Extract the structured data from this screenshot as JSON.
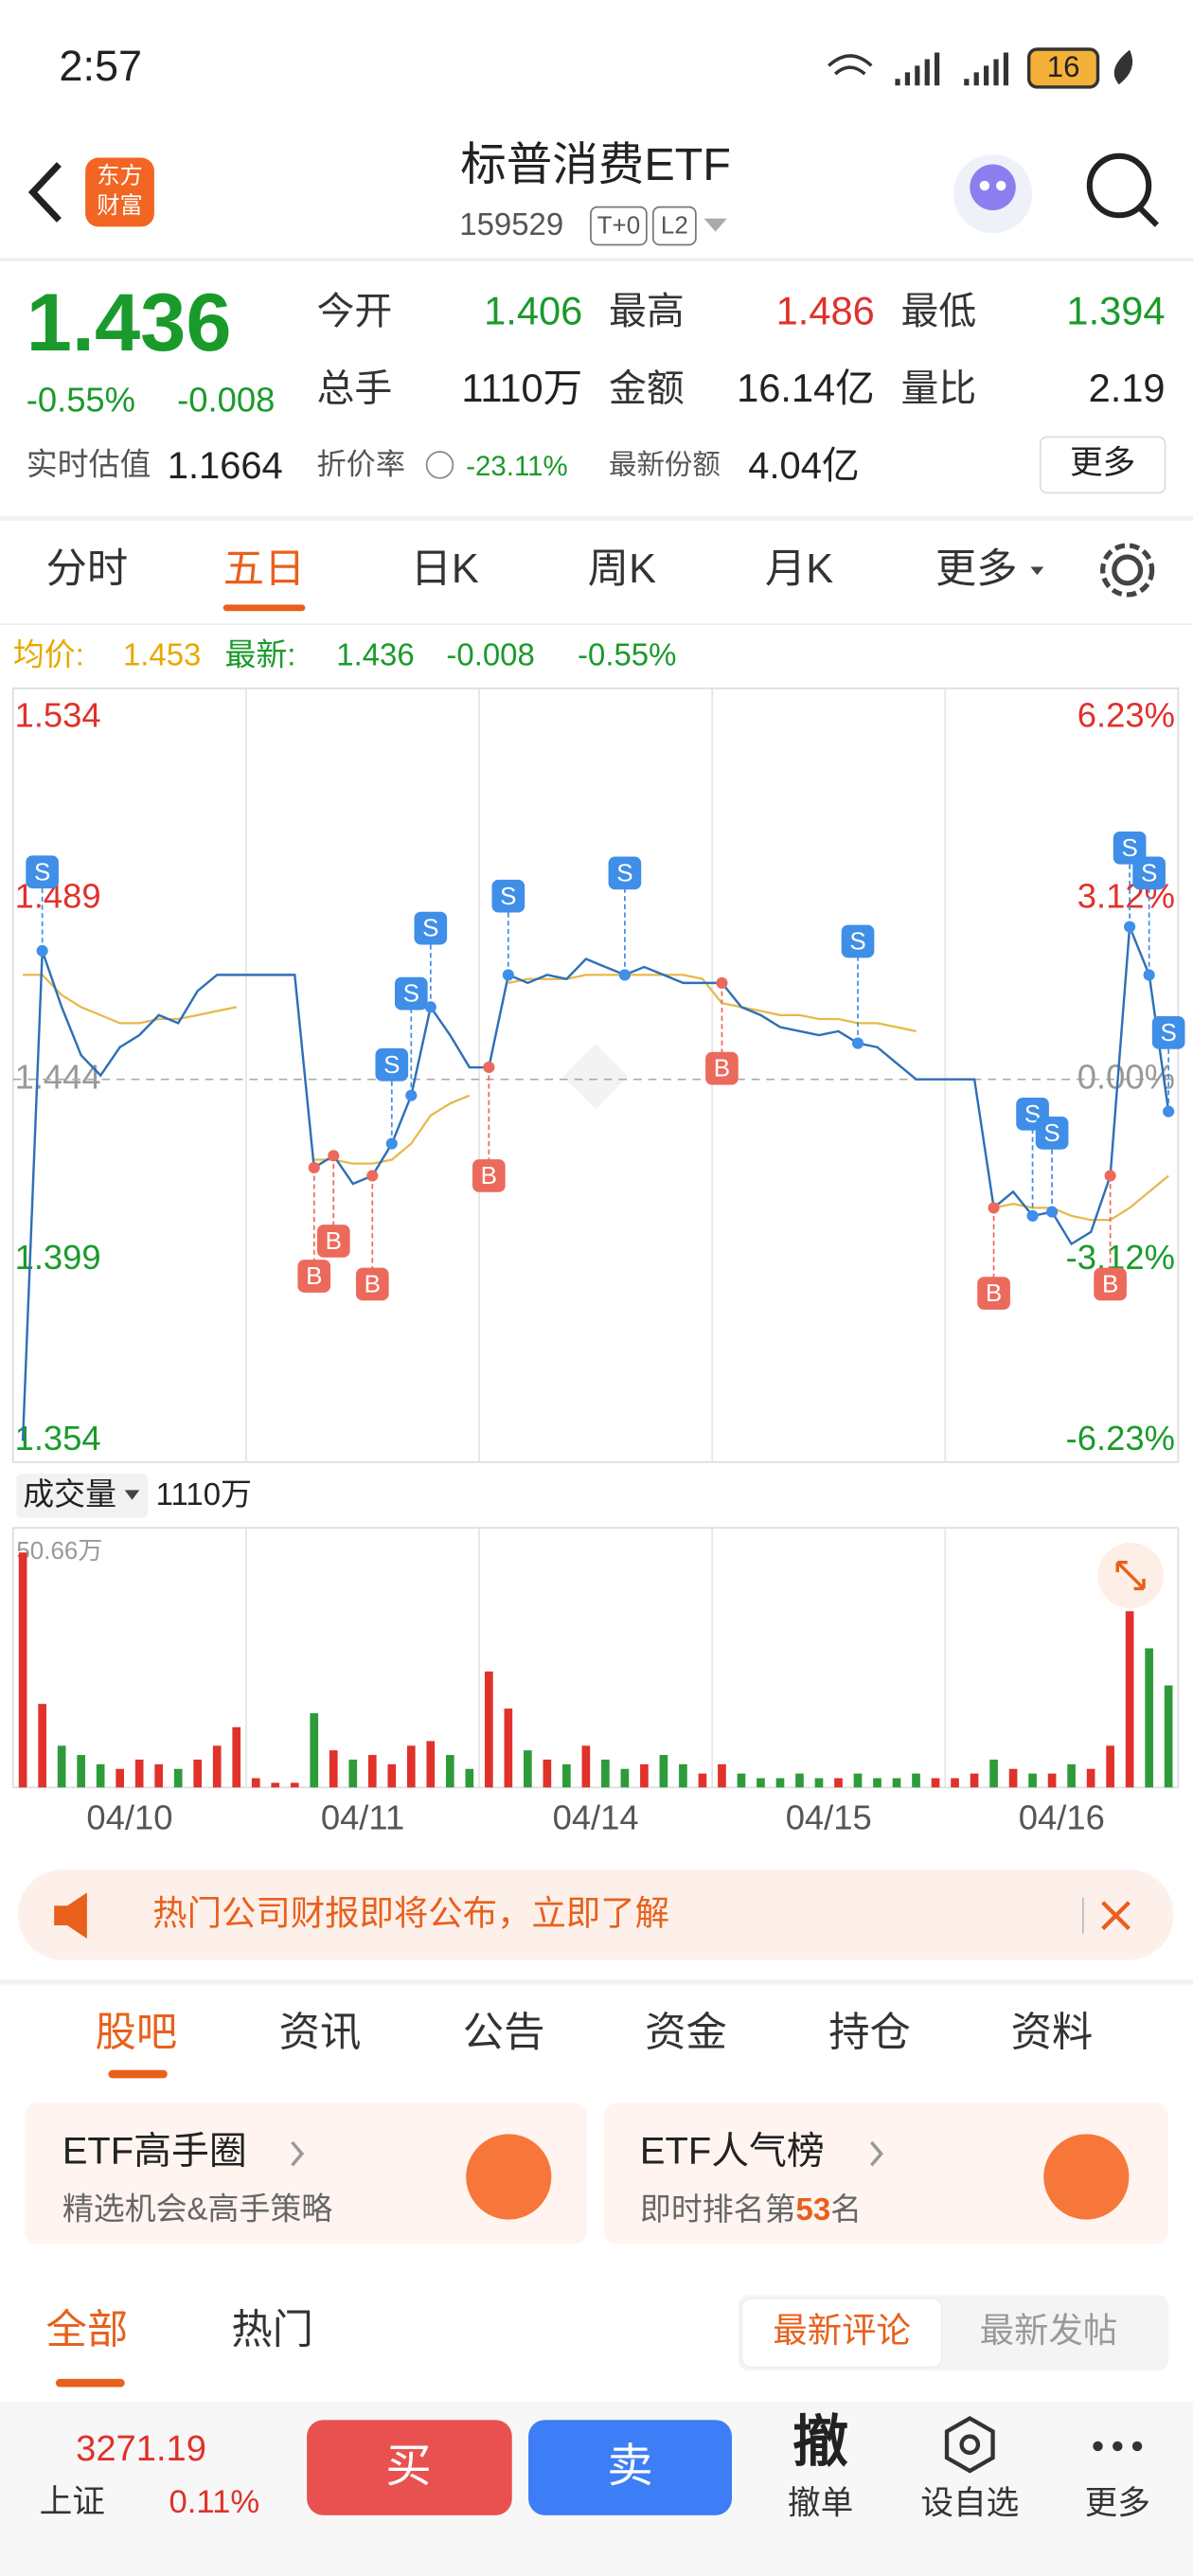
{
  "status": {
    "time": "2:57",
    "battery": "16"
  },
  "header": {
    "logo": [
      "东方",
      "财富"
    ],
    "title": "标普消费ETF",
    "code": "159529",
    "tags": [
      "T+0",
      "L2"
    ]
  },
  "quote": {
    "price": "1.436",
    "change_pct": "-0.55%",
    "change": "-0.008",
    "fields": [
      {
        "label": "今开",
        "value": "1.406",
        "color": "#1a9a2b"
      },
      {
        "label": "最高",
        "value": "1.486",
        "color": "#e0312b"
      },
      {
        "label": "最低",
        "value": "1.394",
        "color": "#1a9a2b"
      },
      {
        "label": "总手",
        "value": "1110万",
        "color": "#222222"
      },
      {
        "label": "金额",
        "value": "16.14亿",
        "color": "#222222"
      },
      {
        "label": "量比",
        "value": "2.19",
        "color": "#222222"
      }
    ],
    "estimate_label": "实时估值",
    "estimate": "1.1664",
    "discount_label": "折价率",
    "discount": "-23.11%",
    "shares_label": "最新份额",
    "shares": "4.04亿",
    "more": "更多"
  },
  "period_tabs": [
    "分时",
    "五日",
    "日K",
    "周K",
    "月K",
    "更多"
  ],
  "chart": {
    "avg_label": "均价:",
    "avg": "1.453",
    "latest_label": "最新:",
    "latest": "1.436",
    "latest_change": "-0.008",
    "latest_pct": "-0.55%",
    "ylim": [
      1.354,
      1.534
    ],
    "yticks": [
      1.534,
      1.489,
      1.444,
      1.399,
      1.354
    ],
    "pct_ticks": [
      {
        "value": 1.534,
        "label": "6.23%"
      },
      {
        "value": 1.489,
        "label": "3.12%"
      },
      {
        "value": 1.444,
        "label": "0.00%"
      },
      {
        "value": 1.399,
        "label": "-3.12%"
      },
      {
        "value": 1.354,
        "label": "-6.23%"
      }
    ],
    "days": [
      "04/10",
      "04/11",
      "04/14",
      "04/15",
      "04/16"
    ],
    "price": [
      1.354,
      1.476,
      1.462,
      1.45,
      1.445,
      1.452,
      1.455,
      1.46,
      1.458,
      1.466,
      1.47,
      1.47,
      1.47,
      1.47,
      1.47,
      1.422,
      1.425,
      1.418,
      1.42,
      1.428,
      1.44,
      1.462,
      1.455,
      1.447,
      1.447,
      1.47,
      1.468,
      1.47,
      1.469,
      1.474,
      1.472,
      1.47,
      1.472,
      1.47,
      1.468,
      1.468,
      1.468,
      1.462,
      1.46,
      1.457,
      1.456,
      1.455,
      1.456,
      1.453,
      1.452,
      1.448,
      1.444,
      1.444,
      1.444,
      1.444,
      1.412,
      1.416,
      1.41,
      1.411,
      1.403,
      1.406,
      1.42,
      1.482,
      1.47,
      1.436
    ],
    "avg_line": [
      1.47,
      1.47,
      1.465,
      1.462,
      1.46,
      1.458,
      1.458,
      1.459,
      1.459,
      1.46,
      1.461,
      1.462,
      null,
      null,
      null,
      1.424,
      1.424,
      1.423,
      1.423,
      1.424,
      1.428,
      1.435,
      1.438,
      1.44,
      null,
      1.468,
      1.469,
      1.469,
      1.469,
      1.47,
      1.47,
      1.47,
      1.47,
      1.47,
      1.47,
      1.469,
      1.463,
      1.462,
      1.461,
      1.46,
      1.46,
      1.459,
      1.459,
      1.458,
      1.458,
      1.457,
      1.456,
      null,
      null,
      null,
      1.412,
      1.413,
      1.412,
      1.412,
      1.41,
      1.409,
      1.409,
      1.412,
      1.416,
      1.42
    ],
    "markers": [
      {
        "index": 1,
        "label": "S"
      },
      {
        "index": 15,
        "label": "B"
      },
      {
        "index": 16,
        "label": "B"
      },
      {
        "index": 18,
        "label": "B"
      },
      {
        "index": 19,
        "label": "S"
      },
      {
        "index": 20,
        "label": "S"
      },
      {
        "index": 21,
        "label": "S"
      },
      {
        "index": 24,
        "label": "B"
      },
      {
        "index": 25,
        "label": "S"
      },
      {
        "index": 31,
        "label": "S"
      },
      {
        "index": 36,
        "label": "B"
      },
      {
        "index": 43,
        "label": "S"
      },
      {
        "index": 50,
        "label": "B"
      },
      {
        "index": 52,
        "label": "S"
      },
      {
        "index": 53,
        "label": "S"
      },
      {
        "index": 56,
        "label": "B"
      },
      {
        "index": 57,
        "label": "S"
      },
      {
        "index": 58,
        "label": "S"
      },
      {
        "index": 59,
        "label": "S"
      }
    ],
    "volume_label": "成交量",
    "volume_total": "1110万",
    "vlim": [
      0,
      50.66
    ],
    "vticks": [
      {
        "value": 50.66,
        "label": "50.66万"
      }
    ],
    "volume": [
      50.66,
      18,
      9,
      7,
      5,
      4,
      6,
      5,
      4,
      6,
      9,
      13,
      2,
      1,
      1,
      16,
      8,
      6,
      7,
      5,
      9,
      10,
      7,
      4,
      25,
      17,
      8,
      6,
      5,
      9,
      6,
      4,
      5,
      7,
      5,
      3,
      5,
      3,
      2,
      2,
      3,
      2,
      2,
      3,
      2,
      2,
      3,
      2,
      2,
      3,
      6,
      4,
      3,
      3,
      5,
      4,
      9,
      38,
      30,
      22
    ]
  },
  "notice": "热门公司财报即将公布，立即了解",
  "section_tabs": [
    "股吧",
    "资讯",
    "公告",
    "资金",
    "持仓",
    "资料"
  ],
  "cards": [
    {
      "title": "ETF高手圈",
      "subtitle": "精选机会&高手策略"
    },
    {
      "title": "ETF人气榜",
      "subtitle_prefix": "即时排名第",
      "rank": "53",
      "subtitle_suffix": "名"
    }
  ],
  "filters": [
    "全部",
    "热门"
  ],
  "sorts": [
    "最新评论",
    "最新发帖"
  ],
  "bottom": {
    "index_value": "3271.19",
    "index_name": "上证",
    "index_pct": "0.11%",
    "buy": "买",
    "sell": "卖",
    "cancel_icon": "撤",
    "actions": [
      "撤单",
      "设自选",
      "更多"
    ]
  }
}
